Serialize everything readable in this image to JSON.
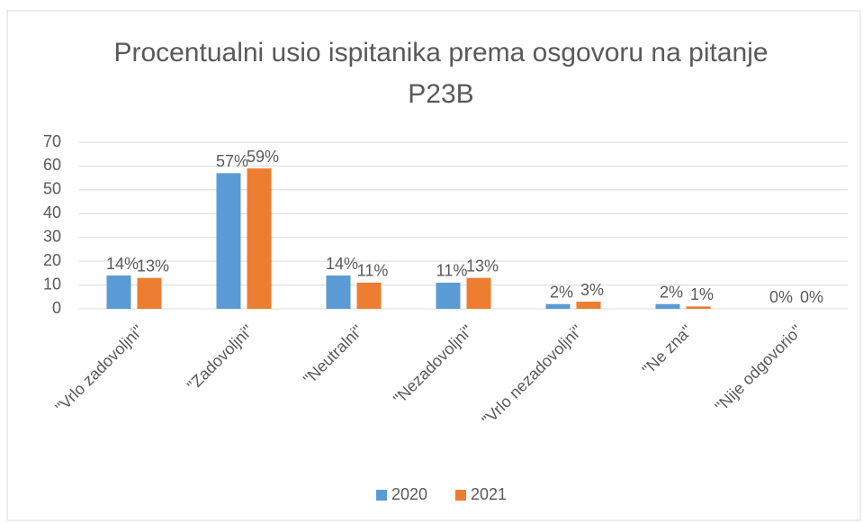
{
  "chart_data": {
    "type": "bar",
    "title": "Procentualni usio ispitanika prema osgovoru na pitanje P23B",
    "categories": [
      "\"Vrlo zadovoljni\"",
      "\"Zadovoljni\"",
      "\"Neutralni\"",
      "\"Nezadovoljni\"",
      "\"Vrlo nezadovoljni\"",
      "\"Ne zna\"",
      "\"Nije odgovorio\""
    ],
    "series": [
      {
        "name": "2020",
        "color": "#5b9bd5",
        "values": [
          14,
          57,
          14,
          11,
          2,
          2,
          0
        ],
        "value_labels": [
          "14%",
          "57%",
          "14%",
          "11%",
          "2%",
          "2%",
          "0%"
        ]
      },
      {
        "name": "2021",
        "color": "#ed7d31",
        "values": [
          13,
          59,
          11,
          13,
          3,
          1,
          0
        ],
        "value_labels": [
          "13%",
          "59%",
          "11%",
          "13%",
          "3%",
          "1%",
          "0%"
        ]
      }
    ],
    "ylim": [
      0,
      70
    ],
    "yticks": [
      0,
      10,
      20,
      30,
      40,
      50,
      60,
      70
    ],
    "grid": true,
    "legend": "bottom"
  }
}
